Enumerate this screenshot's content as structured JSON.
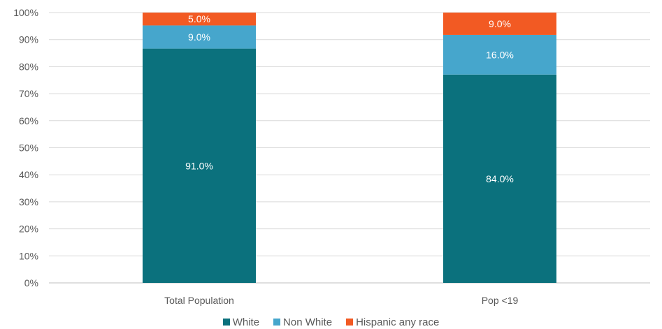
{
  "chart_data": {
    "type": "bar",
    "stacked": true,
    "normalized": true,
    "categories": [
      "Total Population",
      "Pop <19"
    ],
    "series": [
      {
        "name": "White",
        "color": "#0b717d",
        "values": [
          91.0,
          84.0
        ],
        "labels": [
          "91.0%",
          "84.0%"
        ]
      },
      {
        "name": "Non White",
        "color": "#46a6cc",
        "values": [
          9.0,
          16.0
        ],
        "labels": [
          "9.0%",
          "16.0%"
        ]
      },
      {
        "name": "Hispanic any race",
        "color": "#f25a23",
        "values": [
          5.0,
          9.0
        ],
        "labels": [
          "5.0%",
          "9.0%"
        ]
      }
    ],
    "yticks": [
      "0%",
      "10%",
      "20%",
      "30%",
      "40%",
      "50%",
      "60%",
      "70%",
      "80%",
      "90%",
      "100%"
    ],
    "ylim": [
      0,
      100
    ],
    "grid": true,
    "legend_position": "bottom"
  }
}
